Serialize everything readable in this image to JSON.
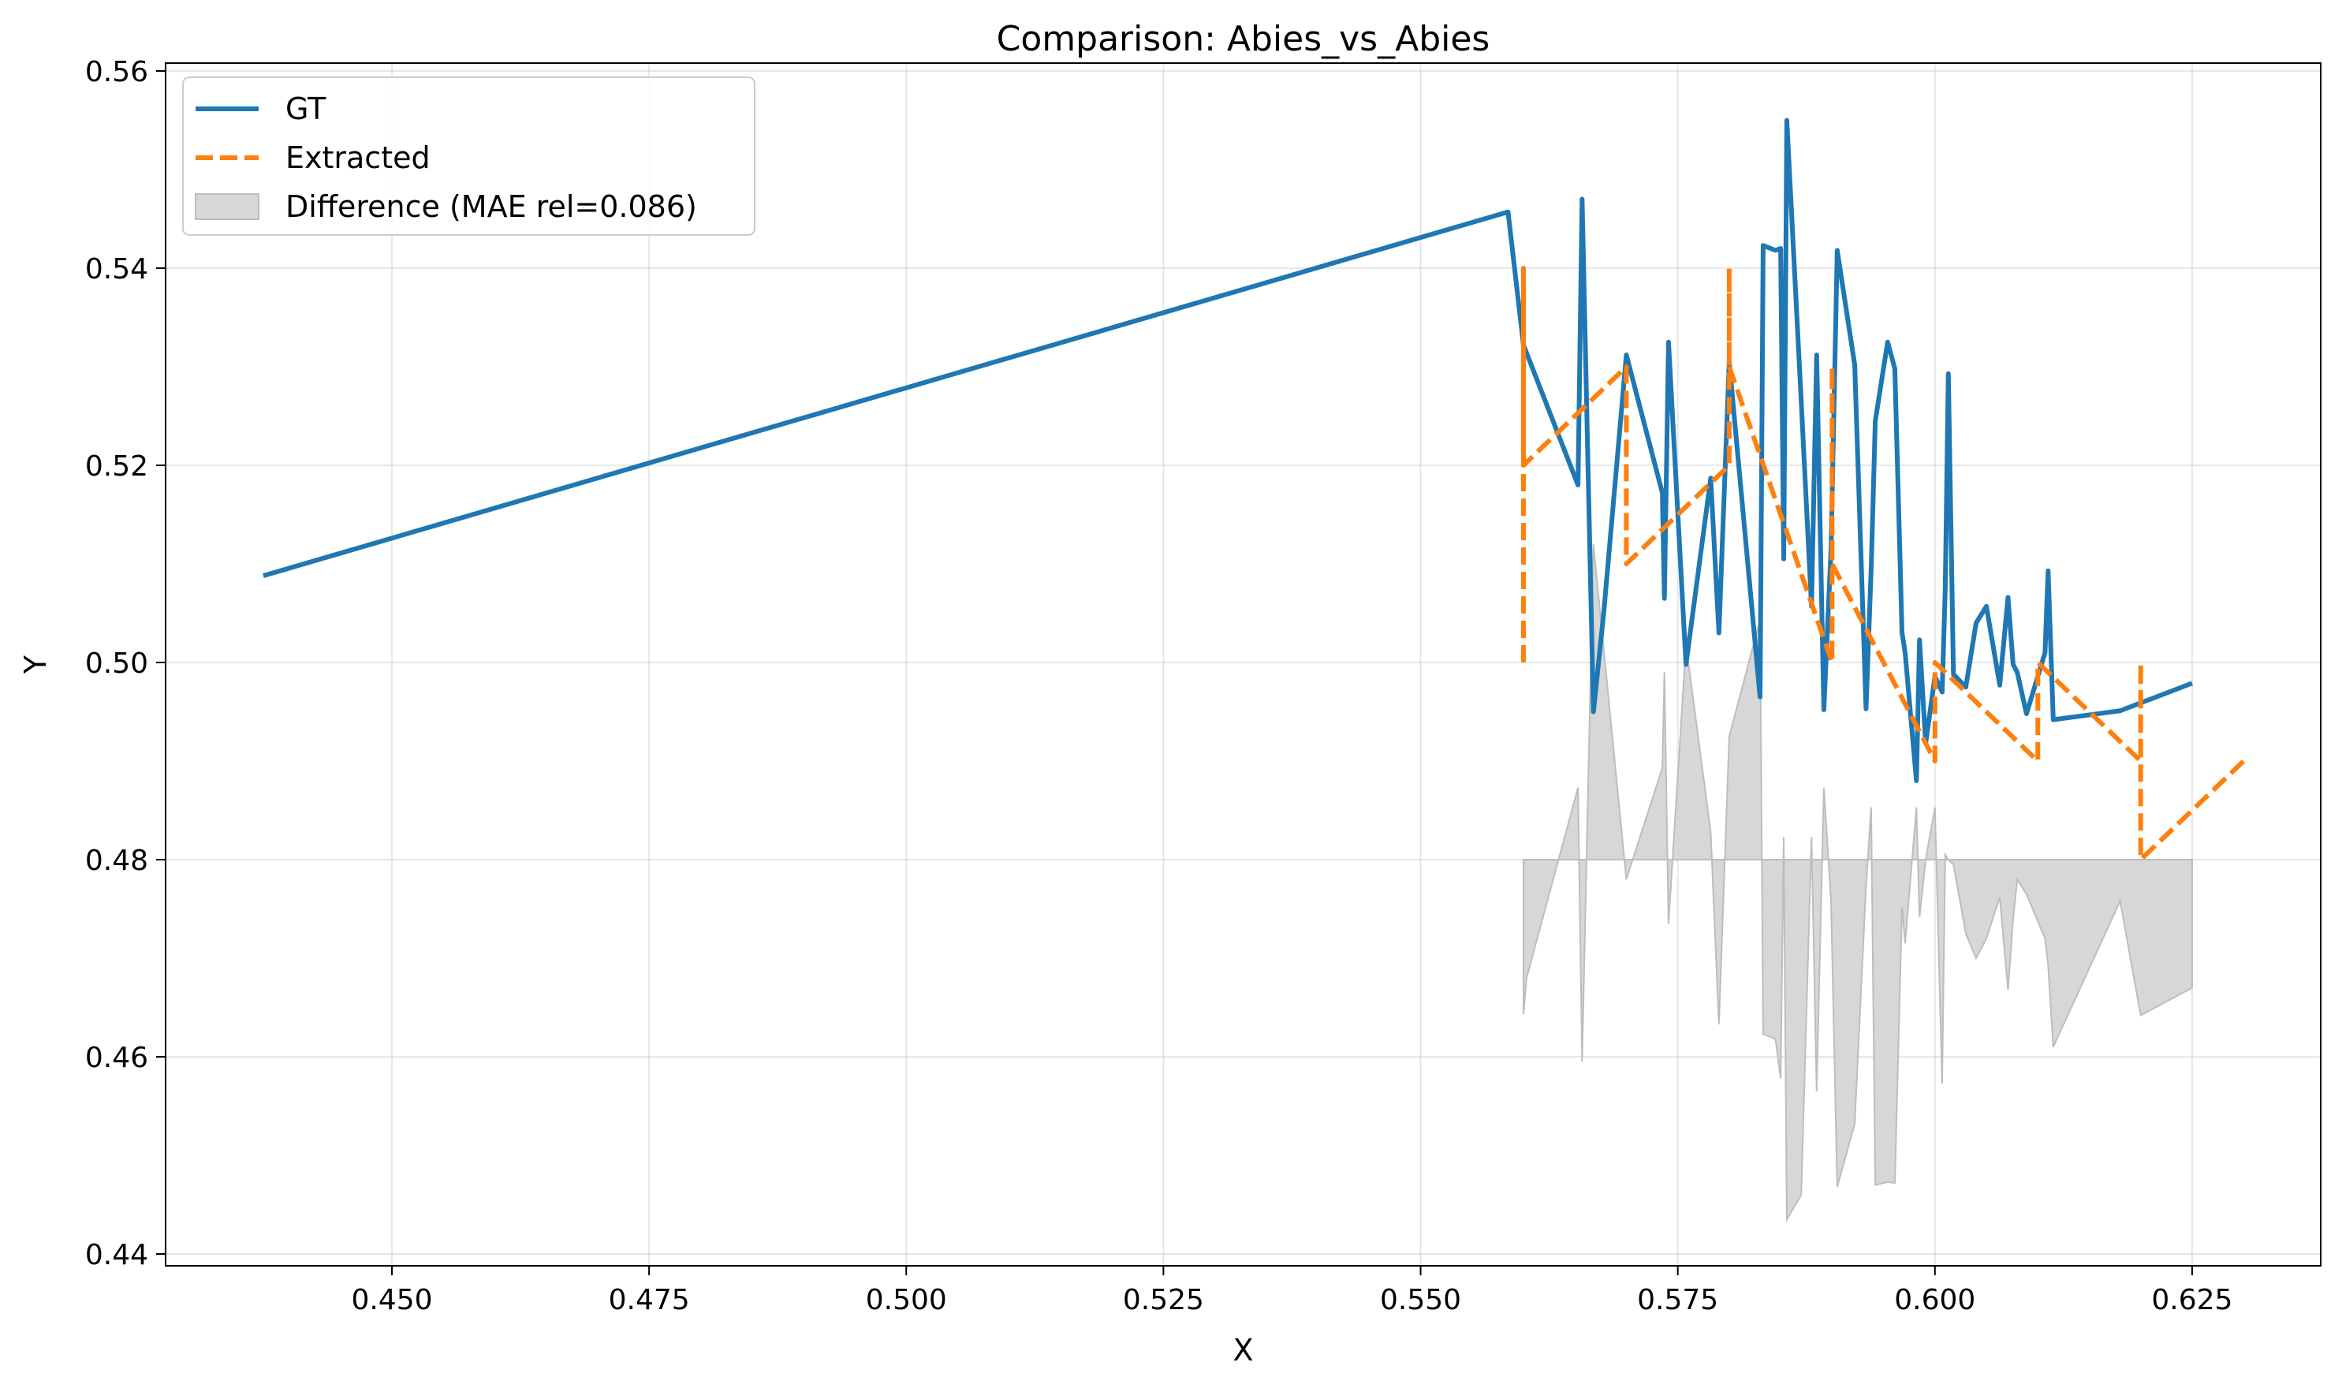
{
  "chart_data": {
    "type": "line",
    "title": "Comparison: Abies_vs_Abies",
    "xlabel": "X",
    "ylabel": "Y",
    "xlim": [
      0.428,
      0.6375
    ],
    "ylim": [
      0.4388,
      0.5608
    ],
    "xticks": [
      0.45,
      0.475,
      0.5,
      0.525,
      0.55,
      0.575,
      0.6,
      0.625
    ],
    "xtick_labels": [
      "0.450",
      "0.475",
      "0.500",
      "0.525",
      "0.550",
      "0.575",
      "0.600",
      "0.625"
    ],
    "yticks": [
      0.44,
      0.46,
      0.48,
      0.5,
      0.52,
      0.54,
      0.56
    ],
    "ytick_labels": [
      "0.44",
      "0.46",
      "0.48",
      "0.50",
      "0.52",
      "0.54",
      "0.56"
    ],
    "grid": true,
    "legend_position": "top-left",
    "series": [
      {
        "name": "GT",
        "color": "#1f77b4",
        "style": "solid",
        "x": [
          0.4375,
          0.5585,
          0.56,
          0.5653,
          0.5657,
          0.5668,
          0.5678,
          0.57,
          0.5735,
          0.5737,
          0.5741,
          0.5758,
          0.5782,
          0.579,
          0.58,
          0.583,
          0.5833,
          0.5845,
          0.585,
          0.5853,
          0.5856,
          0.587,
          0.588,
          0.5885,
          0.5892,
          0.5899,
          0.5905,
          0.5922,
          0.5933,
          0.5938,
          0.5942,
          0.5954,
          0.5961,
          0.5968,
          0.5971,
          0.5982,
          0.5985,
          0.5991,
          0.6,
          0.6007,
          0.601,
          0.6013,
          0.6018,
          0.603,
          0.604,
          0.605,
          0.6063,
          0.6071,
          0.6076,
          0.608,
          0.6089,
          0.6107,
          0.611,
          0.6115,
          0.618,
          0.625
        ],
        "y": [
          0.5088,
          0.5457,
          0.5322,
          0.518,
          0.547,
          0.495,
          0.505,
          0.5312,
          0.5172,
          0.5065,
          0.5325,
          0.4998,
          0.5187,
          0.503,
          0.5305,
          0.4965,
          0.5423,
          0.5418,
          0.542,
          0.5105,
          0.555,
          0.5265,
          0.5057,
          0.5312,
          0.4952,
          0.5115,
          0.5418,
          0.5302,
          0.4953,
          0.5095,
          0.5245,
          0.5325,
          0.5298,
          0.503,
          0.501,
          0.488,
          0.5023,
          0.4918,
          0.4986,
          0.497,
          0.5074,
          0.5293,
          0.4988,
          0.4975,
          0.504,
          0.5057,
          0.4977,
          0.5066,
          0.4998,
          0.499,
          0.4948,
          0.501,
          0.5093,
          0.4942,
          0.4951,
          0.4979
        ]
      },
      {
        "name": "Extracted",
        "color": "#ff7f0e",
        "style": "dashed",
        "x": [
          0.56,
          0.56,
          0.56,
          0.57,
          0.57,
          0.58,
          0.58,
          0.58,
          0.59,
          0.59,
          0.59,
          0.6,
          0.6,
          0.61,
          0.61,
          0.62,
          0.62,
          0.62,
          0.63
        ],
        "y": [
          0.5,
          0.54,
          0.52,
          0.53,
          0.51,
          0.52,
          0.54,
          0.53,
          0.5,
          0.53,
          0.51,
          0.49,
          0.5,
          0.49,
          0.5,
          0.49,
          0.5,
          0.48,
          0.49
        ]
      },
      {
        "name": "Difference (MAE rel=0.086)",
        "color": "#d3d3d3",
        "style": "fill",
        "baseline": 0.48,
        "x": [
          0.56,
          0.5603,
          0.5653,
          0.5657,
          0.5668,
          0.57,
          0.5735,
          0.5737,
          0.5741,
          0.5758,
          0.5782,
          0.579,
          0.58,
          0.583,
          0.5833,
          0.5845,
          0.585,
          0.5853,
          0.5856,
          0.587,
          0.588,
          0.5885,
          0.5892,
          0.5899,
          0.5905,
          0.5922,
          0.5933,
          0.5938,
          0.5942,
          0.5954,
          0.5961,
          0.5968,
          0.5971,
          0.5982,
          0.5985,
          0.5991,
          0.6,
          0.6007,
          0.601,
          0.6013,
          0.6018,
          0.603,
          0.604,
          0.605,
          0.6063,
          0.6071,
          0.6076,
          0.608,
          0.6089,
          0.6107,
          0.611,
          0.6115,
          0.618,
          0.62,
          0.625
        ],
        "y": [
          0.4643,
          0.468,
          0.4873,
          0.4595,
          0.512,
          0.478,
          0.4893,
          0.499,
          0.4735,
          0.5018,
          0.4828,
          0.4633,
          0.4925,
          0.5043,
          0.4623,
          0.4618,
          0.4578,
          0.4823,
          0.4435,
          0.446,
          0.4823,
          0.4565,
          0.4873,
          0.4758,
          0.4468,
          0.4532,
          0.4773,
          0.4853,
          0.447,
          0.4473,
          0.4472,
          0.4752,
          0.4715,
          0.4853,
          0.4742,
          0.48,
          0.4853,
          0.4573,
          0.4805,
          0.48,
          0.4795,
          0.4725,
          0.47,
          0.472,
          0.4762,
          0.4668,
          0.474,
          0.478,
          0.4765,
          0.472,
          0.4693,
          0.461,
          0.4758,
          0.4642,
          0.467
        ]
      }
    ]
  }
}
